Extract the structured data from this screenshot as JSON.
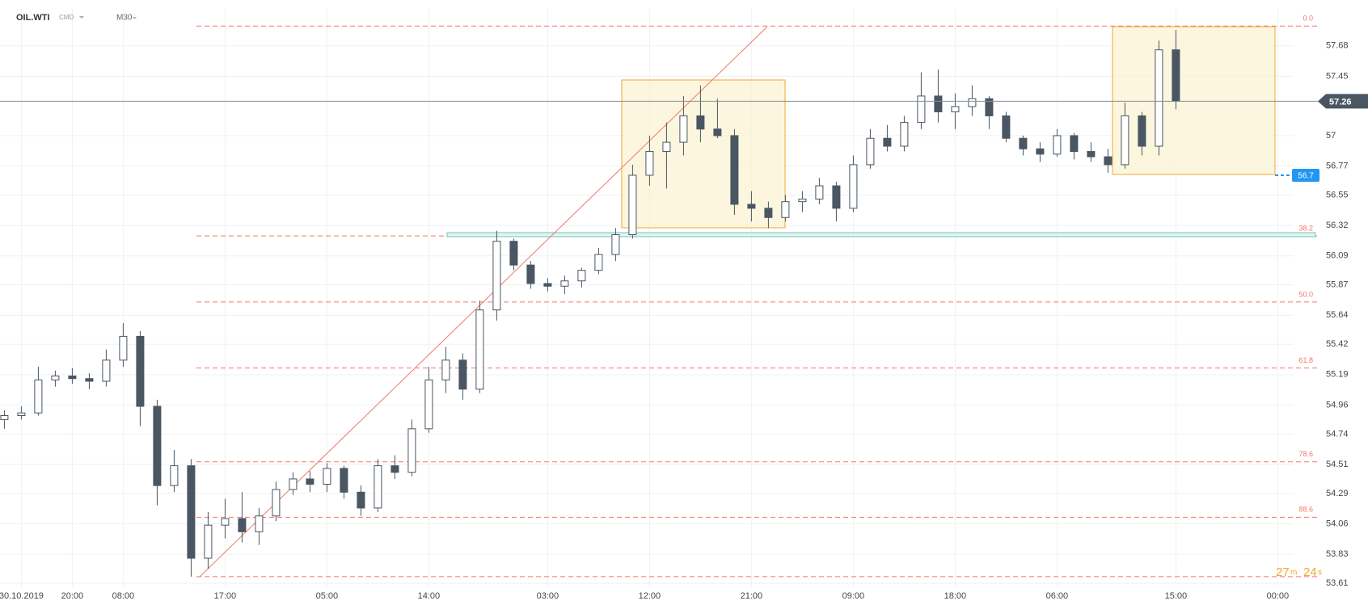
{
  "header": {
    "symbol": "OIL.WTI",
    "market": "CMD",
    "interval": "M30"
  },
  "chart_data": {
    "type": "candlestick",
    "categories": [
      null,
      "30.10.2019",
      null,
      null,
      "20:00",
      null,
      null,
      "08:00",
      null,
      null,
      null,
      null,
      null,
      "17:00",
      null,
      null,
      null,
      null,
      null,
      "05:00",
      null,
      null,
      null,
      null,
      null,
      "14:00",
      null,
      null,
      null,
      null,
      null,
      null,
      "03:00",
      null,
      null,
      null,
      null,
      null,
      "12:00",
      null,
      null,
      null,
      null,
      null,
      "21:00",
      null,
      null,
      null,
      null,
      null,
      "09:00",
      null,
      null,
      null,
      null,
      null,
      "18:00",
      null,
      null,
      null,
      null,
      null,
      "06:00",
      null,
      null,
      null,
      null,
      null,
      null,
      "15:00",
      null,
      null,
      null,
      null,
      null,
      "00:00"
    ],
    "open": [
      54.85,
      54.88,
      54.9,
      55.15,
      55.18,
      55.16,
      55.14,
      55.3,
      55.48,
      54.95,
      54.35,
      54.5,
      53.8,
      54.05,
      54.1,
      54.0,
      54.12,
      54.32,
      54.4,
      54.36,
      54.48,
      54.3,
      54.18,
      54.5,
      54.45,
      54.78,
      55.15,
      55.3,
      55.08,
      55.68,
      56.2,
      56.02,
      55.88,
      55.86,
      55.9,
      55.98,
      56.1,
      56.25,
      56.7,
      56.88,
      56.95,
      57.15,
      57.05,
      57.0,
      56.48,
      56.45,
      56.38,
      56.5,
      56.52,
      56.62,
      56.45,
      56.78,
      56.98,
      56.92,
      57.1,
      57.3,
      57.18,
      57.22,
      57.28,
      57.15,
      56.98,
      56.9,
      56.86,
      57.0,
      56.88,
      56.84,
      56.78,
      57.15,
      56.92,
      57.65,
      null,
      null,
      null,
      null,
      null,
      null
    ],
    "high": [
      54.92,
      54.95,
      55.25,
      55.22,
      55.24,
      55.2,
      55.38,
      55.58,
      55.52,
      55.0,
      54.62,
      54.55,
      54.15,
      54.25,
      54.3,
      54.18,
      54.38,
      54.45,
      54.46,
      54.52,
      54.5,
      54.35,
      54.55,
      54.58,
      54.85,
      55.25,
      55.4,
      55.35,
      55.75,
      56.28,
      56.22,
      56.05,
      55.92,
      55.94,
      56.0,
      56.15,
      56.3,
      56.78,
      57.0,
      57.1,
      57.3,
      57.38,
      57.28,
      57.05,
      56.58,
      56.5,
      56.55,
      56.58,
      56.68,
      56.65,
      56.85,
      57.05,
      57.08,
      57.15,
      57.48,
      57.5,
      57.32,
      57.38,
      57.3,
      57.18,
      57.0,
      56.95,
      57.05,
      57.02,
      56.95,
      56.9,
      57.25,
      57.18,
      57.72,
      57.8,
      null,
      null,
      null,
      null,
      null,
      null
    ],
    "low": [
      54.78,
      54.85,
      54.88,
      55.1,
      55.12,
      55.08,
      55.1,
      55.25,
      54.8,
      54.2,
      54.3,
      53.66,
      53.72,
      53.95,
      53.92,
      53.9,
      54.08,
      54.28,
      54.3,
      54.3,
      54.25,
      54.12,
      54.15,
      54.4,
      54.42,
      54.75,
      55.05,
      55.0,
      55.05,
      55.6,
      55.98,
      55.84,
      55.82,
      55.8,
      55.85,
      55.95,
      56.05,
      56.22,
      56.62,
      56.6,
      56.85,
      56.95,
      56.98,
      56.4,
      56.35,
      56.3,
      56.35,
      56.42,
      56.48,
      56.35,
      56.42,
      56.75,
      56.88,
      56.88,
      57.05,
      57.1,
      57.05,
      57.15,
      57.05,
      56.95,
      56.85,
      56.8,
      56.84,
      56.82,
      56.8,
      56.72,
      56.75,
      56.85,
      56.85,
      57.2,
      null,
      null,
      null,
      null,
      null,
      null
    ],
    "close": [
      54.88,
      54.9,
      55.15,
      55.18,
      55.16,
      55.14,
      55.3,
      55.48,
      54.95,
      54.35,
      54.5,
      53.8,
      54.05,
      54.1,
      54.0,
      54.12,
      54.32,
      54.4,
      54.36,
      54.48,
      54.3,
      54.18,
      54.5,
      54.45,
      54.78,
      55.15,
      55.3,
      55.08,
      55.68,
      56.2,
      56.02,
      55.88,
      55.86,
      55.9,
      55.98,
      56.1,
      56.25,
      56.7,
      56.88,
      56.95,
      57.15,
      57.05,
      57.0,
      56.48,
      56.45,
      56.38,
      56.5,
      56.52,
      56.62,
      56.45,
      56.78,
      56.98,
      56.92,
      57.1,
      57.3,
      57.18,
      57.22,
      57.28,
      57.15,
      56.98,
      56.9,
      56.86,
      57.0,
      56.88,
      56.84,
      56.78,
      57.15,
      56.92,
      57.65,
      57.26,
      null,
      null,
      null,
      null,
      null,
      null
    ],
    "up_color": "#ffffff",
    "down_color": "#4a5662",
    "outline_color": "#4a5662",
    "ylim": [
      53.58,
      57.96
    ],
    "yticks": [
      57.68,
      57.45,
      57.0,
      56.77,
      56.55,
      56.32,
      56.09,
      55.87,
      55.64,
      55.42,
      55.19,
      54.96,
      54.74,
      54.51,
      54.29,
      54.06,
      53.83,
      53.61
    ],
    "grid": true,
    "fib_levels": [
      {
        "label": "0.0",
        "price": 57.83
      },
      {
        "label": "38.2",
        "price": 56.24
      },
      {
        "label": "50.0",
        "price": 55.74
      },
      {
        "label": "61.8",
        "price": 55.24
      },
      {
        "label": "78.6",
        "price": 54.53
      },
      {
        "label": "88.6",
        "price": 54.11
      },
      {
        "price": 53.66
      }
    ],
    "fib_color": "#f0776a",
    "current_price": {
      "value": 57.26,
      "color": "#4a5662"
    },
    "order_price": {
      "value": 56.7,
      "color": "#2196f3"
    },
    "timer": [
      "27",
      "m",
      "24",
      "s"
    ]
  }
}
